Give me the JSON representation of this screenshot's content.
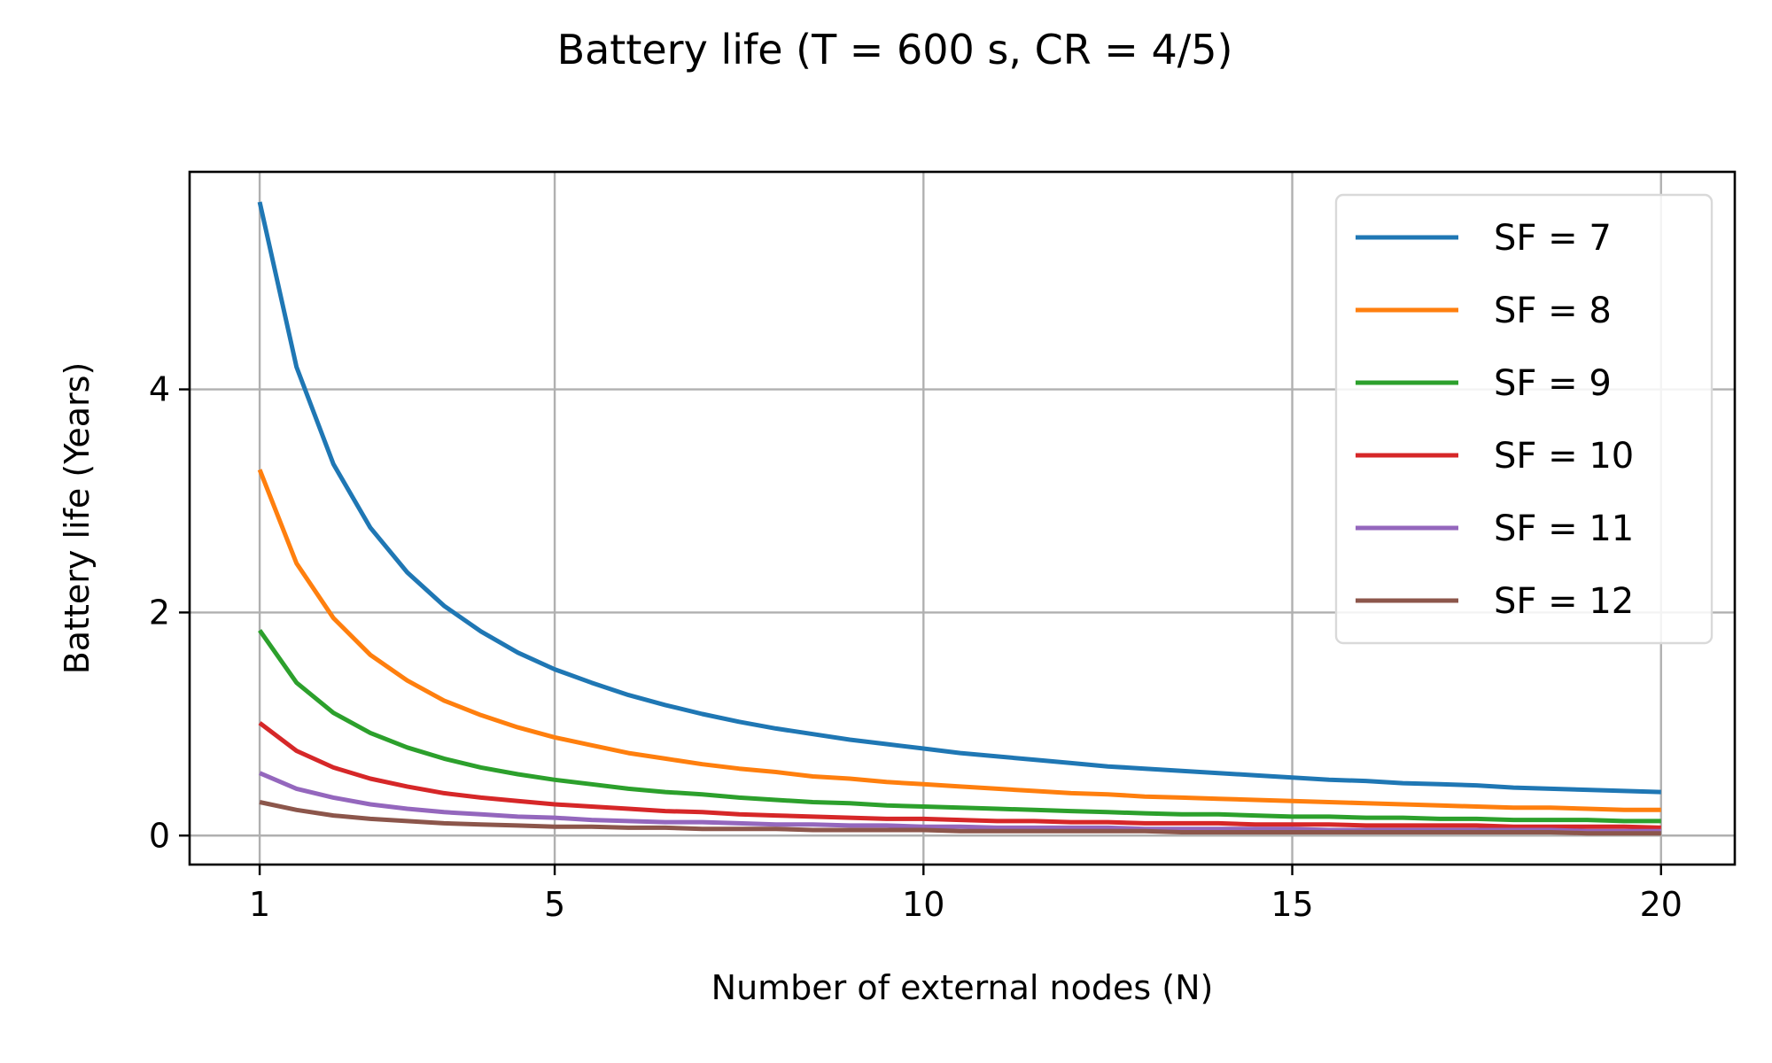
{
  "chart_data": {
    "type": "line",
    "title": "Battery life (T = 600 s, CR = 4/5)",
    "xlabel": "Number of external nodes (N)",
    "ylabel": "Battery life (Years)",
    "xlim": [
      0.05,
      21.0
    ],
    "ylim": [
      -0.26,
      5.95
    ],
    "xticks": [
      1,
      5,
      10,
      15,
      20
    ],
    "yticks": [
      0,
      2,
      4
    ],
    "grid": true,
    "legend_position": "top-right",
    "x": [
      1,
      1.5,
      2,
      2.5,
      3,
      3.5,
      4,
      4.5,
      5,
      5.5,
      6,
      6.5,
      7,
      7.5,
      8,
      8.5,
      9,
      9.5,
      10,
      10.5,
      11,
      11.5,
      12,
      12.5,
      13,
      13.5,
      14,
      14.5,
      15,
      15.5,
      16,
      16.5,
      17,
      17.5,
      18,
      18.5,
      19,
      19.5,
      20
    ],
    "series": [
      {
        "name": "SF = 7",
        "color": "#1f77b4",
        "values": [
          5.68,
          4.2,
          3.33,
          2.76,
          2.36,
          2.06,
          1.83,
          1.64,
          1.49,
          1.37,
          1.26,
          1.17,
          1.09,
          1.02,
          0.96,
          0.91,
          0.86,
          0.82,
          0.78,
          0.74,
          0.71,
          0.68,
          0.65,
          0.62,
          0.6,
          0.58,
          0.56,
          0.54,
          0.52,
          0.5,
          0.49,
          0.47,
          0.46,
          0.45,
          0.43,
          0.42,
          0.41,
          0.4,
          0.39
        ]
      },
      {
        "name": "SF = 8",
        "color": "#ff7f0e",
        "values": [
          3.28,
          2.44,
          1.95,
          1.62,
          1.39,
          1.21,
          1.08,
          0.97,
          0.88,
          0.81,
          0.74,
          0.69,
          0.64,
          0.6,
          0.57,
          0.53,
          0.51,
          0.48,
          0.46,
          0.44,
          0.42,
          0.4,
          0.38,
          0.37,
          0.35,
          0.34,
          0.33,
          0.32,
          0.31,
          0.3,
          0.29,
          0.28,
          0.27,
          0.26,
          0.25,
          0.25,
          0.24,
          0.23,
          0.23
        ]
      },
      {
        "name": "SF = 9",
        "color": "#2ca02c",
        "values": [
          1.84,
          1.37,
          1.1,
          0.92,
          0.79,
          0.69,
          0.61,
          0.55,
          0.5,
          0.46,
          0.42,
          0.39,
          0.37,
          0.34,
          0.32,
          0.3,
          0.29,
          0.27,
          0.26,
          0.25,
          0.24,
          0.23,
          0.22,
          0.21,
          0.2,
          0.19,
          0.19,
          0.18,
          0.17,
          0.17,
          0.16,
          0.16,
          0.15,
          0.15,
          0.14,
          0.14,
          0.14,
          0.13,
          0.13
        ]
      },
      {
        "name": "SF = 10",
        "color": "#d62728",
        "values": [
          1.01,
          0.76,
          0.61,
          0.51,
          0.44,
          0.38,
          0.34,
          0.31,
          0.28,
          0.26,
          0.24,
          0.22,
          0.21,
          0.19,
          0.18,
          0.17,
          0.16,
          0.15,
          0.15,
          0.14,
          0.13,
          0.13,
          0.12,
          0.12,
          0.11,
          0.11,
          0.11,
          0.1,
          0.1,
          0.1,
          0.09,
          0.09,
          0.09,
          0.09,
          0.08,
          0.08,
          0.08,
          0.08,
          0.07
        ]
      },
      {
        "name": "SF = 11",
        "color": "#9467bd",
        "values": [
          0.56,
          0.42,
          0.34,
          0.28,
          0.24,
          0.21,
          0.19,
          0.17,
          0.16,
          0.14,
          0.13,
          0.12,
          0.12,
          0.11,
          0.1,
          0.1,
          0.09,
          0.09,
          0.08,
          0.08,
          0.07,
          0.07,
          0.07,
          0.07,
          0.06,
          0.06,
          0.06,
          0.06,
          0.06,
          0.05,
          0.05,
          0.05,
          0.05,
          0.05,
          0.05,
          0.05,
          0.04,
          0.04,
          0.04
        ]
      },
      {
        "name": "SF = 12",
        "color": "#8c564b",
        "values": [
          0.3,
          0.23,
          0.18,
          0.15,
          0.13,
          0.11,
          0.1,
          0.09,
          0.08,
          0.08,
          0.07,
          0.07,
          0.06,
          0.06,
          0.06,
          0.05,
          0.05,
          0.05,
          0.05,
          0.04,
          0.04,
          0.04,
          0.04,
          0.04,
          0.04,
          0.03,
          0.03,
          0.03,
          0.03,
          0.03,
          0.03,
          0.03,
          0.03,
          0.03,
          0.03,
          0.03,
          0.02,
          0.02,
          0.02
        ]
      }
    ]
  }
}
